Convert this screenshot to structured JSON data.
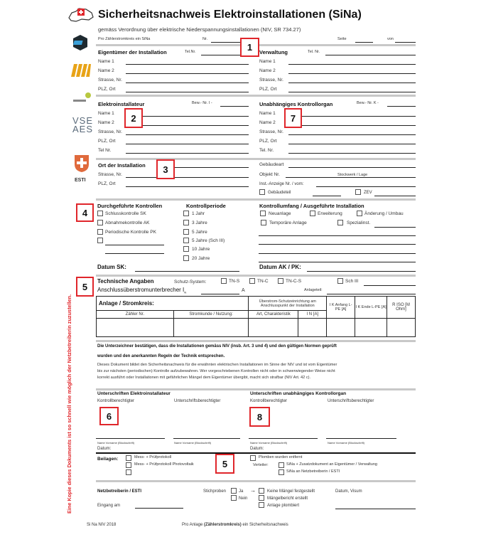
{
  "title": "Sicherheitsnachweis Elektroinstallationen (SiNa)",
  "subtitle": "gemäss Verordnung über elektrische Niederspannungsinstallationen (NIV, SR 734.27)",
  "top_row": {
    "per_circuit": "Pro Zählerstromkreis ein SiNa",
    "nr": "Nr.",
    "seite": "Seite",
    "von": "von"
  },
  "owner": {
    "title": "Eigentümer der Installation",
    "tel": "Tel.Nr.",
    "fields": [
      "Name 1",
      "Name 2",
      "Strasse, Nr.",
      "PLZ, Ort"
    ]
  },
  "admin": {
    "title": "Verwaltung",
    "tel": "Tel. Nr.",
    "fields": [
      "Name 1",
      "Name 2",
      "Strasse, Nr.",
      "PLZ, Ort"
    ]
  },
  "installer": {
    "title": "Elektroinstallateur",
    "bew": "Bew.- Nr. I -",
    "fields": [
      "Name 1",
      "Name 2",
      "Strasse, Nr.",
      "PLZ, Ort",
      "Tel Nr."
    ]
  },
  "control_body": {
    "title": "Unabhängiges Kontrollorgan",
    "bew": "Bew.- Nr. K -",
    "fields": [
      "Name 1",
      "Name 2",
      "Strasse, Nr.",
      "PLZ, Ort",
      "Tel. Nr."
    ]
  },
  "location": {
    "title": "Ort der Installation",
    "fields": [
      "Strasse, Nr.",
      "PLZ, Ort"
    ],
    "gebaeudeart": "Gebäudeart",
    "objekt": "Objekt Nr.",
    "stockwerk": "Stockwerk / Lage",
    "inst_anzeige": "Inst.-Anzeige Nr. / vom:",
    "gebaeudeteil": "Gebäudeteil",
    "zev": "ZEV"
  },
  "controls": {
    "title": "Durchgeführte Kontrollen",
    "items": [
      "Schlusskontrolle SK",
      "Abnahmekontrolle  AK",
      "Periodische Kontrolle PK"
    ],
    "datum_sk": "Datum SK:"
  },
  "period": {
    "title": "Kontrollperiode",
    "items": [
      "1 Jahr",
      "3 Jahre",
      "5 Jahre",
      "5 Jahre (Sch III)",
      "10 Jahre",
      "20 Jahre"
    ]
  },
  "scope": {
    "title": "Kontrollumfang / Ausgeführte Installation",
    "items": [
      "Neuanlage",
      "Erweiterung",
      "Änderung / Umbau",
      "Temporäre Anlage",
      "Spezialinst."
    ],
    "datum_ak": "Datum AK / PK:"
  },
  "tech": {
    "title": "Technische Angaben",
    "schutz": "Schutz-System:",
    "systems": [
      "TN-S",
      "TN-C",
      "TN-C-S",
      "Sch III"
    ],
    "breaker": "Anschlussüberstromunterbrecher I",
    "breaker_sub": "N",
    "unit_a": "A",
    "anlageteil": "Anlageteil:"
  },
  "table": {
    "anlage": "Anlage / Stromkreis:",
    "ueberstrom": "Überstrom-Schutzeinrichtung am Anschlusspunkt der Installation",
    "ik_anfang": "I K Anfang L-PE [A]",
    "ik_ende": "I K Ende L-PE [A]",
    "riso": "R ISO [M Ohm]",
    "zaehler": "Zähler Nr.",
    "stromkunde": "Stromkunde /  Nutzung:",
    "art": "Art, Charakteristik",
    "in": "I N [A]"
  },
  "confirm": {
    "bold1": "Die Unterzeichner bestätigen, dass die Installationen gemäss NIV (insb. Art. 3 und 4) und den gültigen Normen geprüft",
    "bold2": "wurden und den anerkannten Regeln der Technik entsprechen.",
    "p1": "Dieses Dokument bildet den Sicherheitsnachweis für die erwähnten elektrischen Installationen im Sinne der NIV und ist vom Eigentümer",
    "p2": "bis zur nächsten (periodischen) Kontrolle aufzubewahren. Wer vorgeschriebenen Kontrollen nicht oder in schwerwiegender Weise nicht",
    "p3": "korrekt ausführt oder Installationen mit gefährlichen Mängel dem Eigentümer übergibt, macht sich strafbar (NIV Art. 42 c)."
  },
  "signatures": {
    "left_title": "Unterschriften Elektroinstallateur",
    "right_title": "Unterschriften unabhängiges Kontrollorgan",
    "kontroll": "Kontrollberechtigter",
    "unterschrift": "Unterschriftsberechtigter",
    "name": "Name Vorname (Blockschrift)",
    "datum": "Datum:"
  },
  "attachments": {
    "title": "Beilagen:",
    "items": [
      "Mess- + Prüfprotokoll",
      "Mess- + Prüfprotokoll Photovoltaik"
    ],
    "plomben": "Plomben wurden entfernt",
    "verteiler": "Verteiler:",
    "dist": [
      "SiNa + Zusatzdokument an Eigentümer / Verwaltung",
      "SiNa an Netzbetreiberin / ESTI"
    ]
  },
  "grid": {
    "title": "Netzbetreiberin / ESTI",
    "stichproben": "Stichproben",
    "ja": "Ja",
    "nein": "Nein",
    "arrow": "→",
    "results": [
      "Keine Mängel festgestellt",
      "Mängelbericht erstellt",
      "Anlage plombiert"
    ],
    "datum_visum": "Datum, Visum",
    "eingang": "Eingang am"
  },
  "footer": {
    "left": "Si Na NIV 2018",
    "pre": "Pro Anlage ",
    "bold": "(Zählerstromkreis)",
    "post": "  ein Sicherheitsnachweis"
  },
  "side_note": "Eine Kopie dieses Dokuments ist so schnell wie möglich der Netzbetreiberin zuzustellen.",
  "logos": {
    "vse": "VSE AES",
    "esti": "ESTI"
  },
  "markers": [
    "1",
    "2",
    "7",
    "3",
    "4",
    "5",
    "6",
    "8",
    "5"
  ],
  "colors": {
    "marker": "#e0262b",
    "side_note": "#e0262b",
    "divider": "#c8c8c8"
  }
}
